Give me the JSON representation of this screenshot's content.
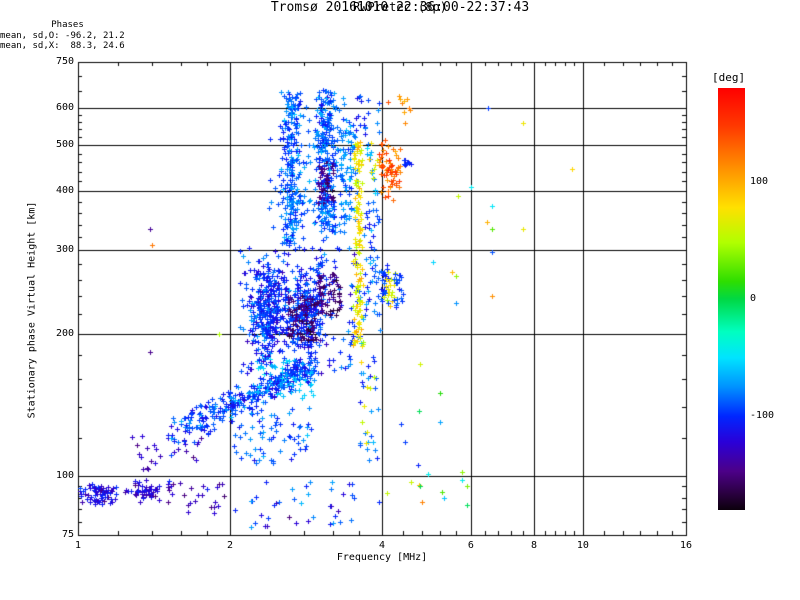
{
  "title": {
    "line1": "Tromsø 20161010 22:36:00-22:37:43",
    "line2": "RwPretec (8p)"
  },
  "annotation": {
    "header": "Phases",
    "line_o": "mean, sd,O: -96.2, 21.2",
    "line_x": "mean, sd,X:  88.3, 24.6"
  },
  "axes": {
    "x": {
      "label": "Frequency [MHz]",
      "scale": "log",
      "range": [
        1,
        16
      ],
      "major_ticks": [
        1,
        2,
        4,
        6,
        8,
        10,
        16
      ],
      "minor_ticks": [
        1.2,
        1.4,
        1.6,
        1.8,
        2.4,
        2.8,
        3.2,
        3.6,
        4.4,
        4.8,
        5.2,
        5.6,
        6.4,
        6.8,
        7.2,
        7.6,
        8.4,
        8.8,
        9.2,
        9.6,
        11,
        12,
        13,
        14,
        15
      ],
      "gridlines": [
        2,
        4,
        6,
        8,
        10
      ]
    },
    "y": {
      "label": "Stationary phase Virtual Height [km]",
      "scale": "log",
      "range": [
        75,
        750
      ],
      "major_ticks": [
        750,
        600,
        500,
        400,
        300,
        200,
        100,
        75
      ],
      "minor_ticks": [
        80,
        85,
        90,
        95,
        120,
        140,
        160,
        180,
        220,
        240,
        260,
        280,
        320,
        340,
        360,
        380,
        420,
        440,
        460,
        480,
        520,
        540,
        560,
        580,
        650,
        700
      ],
      "gridlines": [
        100,
        200,
        300,
        400,
        500,
        600
      ]
    }
  },
  "colorbar": {
    "label": "[deg]",
    "units": "deg",
    "range": [
      -180,
      180
    ],
    "tick_values": [
      100,
      0,
      -100
    ],
    "stops": [
      {
        "v": 180,
        "c": "#ff0000"
      },
      {
        "v": 148,
        "c": "#ff3800"
      },
      {
        "v": 110,
        "c": "#ff9400"
      },
      {
        "v": 78,
        "c": "#ffe000"
      },
      {
        "v": 48,
        "c": "#b0ff00"
      },
      {
        "v": 15,
        "c": "#2ede00"
      },
      {
        "v": 0,
        "c": "#00d844"
      },
      {
        "v": -28,
        "c": "#00ffc0"
      },
      {
        "v": -50,
        "c": "#00e4ff"
      },
      {
        "v": -75,
        "c": "#0092ff"
      },
      {
        "v": -100,
        "c": "#0026ff"
      },
      {
        "v": -122,
        "c": "#2a00d8"
      },
      {
        "v": -147,
        "c": "#4c0088"
      },
      {
        "v": -166,
        "c": "#2a0040"
      },
      {
        "v": -180,
        "c": "#0c000c"
      }
    ]
  },
  "chart_data": {
    "type": "scatter",
    "marker": "plus",
    "title": "Tromsø 20161010 22:36:00-22:37:43 / RwPretec (8p)",
    "xlabel": "Frequency [MHz]",
    "ylabel": "Stationary phase Virtual Height [km]",
    "xlim": [
      1,
      16
    ],
    "ylim": [
      75,
      750
    ],
    "xscale": "log",
    "yscale": "log",
    "color_variable": "phase [deg]",
    "stats": {
      "mean_sd_O": [
        -96.2,
        21.2
      ],
      "mean_sd_X": [
        88.3,
        24.6
      ]
    },
    "seed": 42,
    "clusters": [
      {
        "name": "es-blob-1",
        "f": [
          1.0,
          1.22
        ],
        "h": [
          86,
          98
        ],
        "n": 70,
        "p": [
          -150,
          -88
        ],
        "mode": "center"
      },
      {
        "name": "es-blob-2",
        "f": [
          1.22,
          1.52
        ],
        "h": [
          87,
          99
        ],
        "n": 55,
        "p": [
          -155,
          -95
        ],
        "mode": "center"
      },
      {
        "name": "es-tail",
        "f": [
          1.5,
          1.95
        ],
        "h": [
          83,
          97
        ],
        "n": 28,
        "p": [
          -160,
          -100
        ],
        "mode": "blob"
      },
      {
        "name": "es-upper-row",
        "f": [
          1.25,
          1.8
        ],
        "h": [
          103,
          122
        ],
        "n": 26,
        "p": [
          -158,
          -104
        ],
        "mode": "blob"
      },
      {
        "name": "d-region-scatter",
        "f": [
          2.0,
          3.55
        ],
        "h": [
          78,
          97
        ],
        "n": 38,
        "p": [
          -145,
          -55
        ],
        "mode": "blob"
      },
      {
        "name": "e-trace",
        "f": [
          1.5,
          2.95
        ],
        "h": [
          121,
          170
        ],
        "n": 330,
        "p": [
          -128,
          -62
        ],
        "mode": "band",
        "spread": 13
      },
      {
        "name": "e-trace-cyan-top",
        "f": [
          2.25,
          2.92
        ],
        "h": [
          146,
          178
        ],
        "n": 55,
        "p": [
          -78,
          -45
        ],
        "mode": "blob"
      },
      {
        "name": "e-underlayer",
        "f": [
          2.0,
          2.95
        ],
        "h": [
          106,
          142
        ],
        "n": 75,
        "p": [
          -125,
          -55
        ],
        "mode": "blob"
      },
      {
        "name": "f-blob-core-1",
        "f": [
          2.15,
          2.62
        ],
        "h": [
          168,
          302
        ],
        "n": 290,
        "p": [
          -135,
          -65
        ],
        "mode": "center"
      },
      {
        "name": "f-blob-core-2",
        "f": [
          2.55,
          3.12
        ],
        "h": [
          178,
          285
        ],
        "n": 240,
        "p": [
          -130,
          -68
        ],
        "mode": "center"
      },
      {
        "name": "f-blob-spread",
        "f": [
          2.08,
          3.66
        ],
        "h": [
          164,
          312
        ],
        "n": 190,
        "p": [
          -140,
          -58
        ],
        "mode": "blob"
      },
      {
        "name": "purple-streak-1",
        "f": [
          2.6,
          2.98
        ],
        "h": [
          193,
          242
        ],
        "n": 80,
        "p": [
          -175,
          -132
        ],
        "mode": "blob"
      },
      {
        "name": "purple-streak-2",
        "f": [
          2.98,
          3.32
        ],
        "h": [
          218,
          268
        ],
        "n": 60,
        "p": [
          -172,
          -130
        ],
        "mode": "blob"
      },
      {
        "name": "spreadF-column-A",
        "f": [
          2.5,
          2.78
        ],
        "h": [
          310,
          648
        ],
        "n": 215,
        "p": [
          -115,
          -55
        ],
        "mode": "centerx"
      },
      {
        "name": "spreadF-column-B",
        "f": [
          2.92,
          3.27
        ],
        "h": [
          328,
          655
        ],
        "n": 245,
        "p": [
          -120,
          -58
        ],
        "mode": "centerx"
      },
      {
        "name": "column-B-purple-core",
        "f": [
          2.98,
          3.2
        ],
        "h": [
          378,
          462
        ],
        "n": 50,
        "p": [
          -170,
          -126
        ],
        "mode": "blob"
      },
      {
        "name": "spreadF-column-C",
        "f": [
          3.3,
          3.58
        ],
        "h": [
          348,
          568
        ],
        "n": 75,
        "p": [
          -105,
          -50
        ],
        "mode": "blob"
      },
      {
        "name": "inter-column-fill",
        "f": [
          2.58,
          3.45
        ],
        "h": [
          305,
          630
        ],
        "n": 105,
        "p": [
          -115,
          -58
        ],
        "mode": "blob"
      },
      {
        "name": "column-left-sparse",
        "f": [
          2.35,
          2.55
        ],
        "h": [
          330,
          560
        ],
        "n": 13,
        "p": [
          -120,
          -70
        ],
        "mode": "blob"
      },
      {
        "name": "top-mid-sparse",
        "f": [
          3.55,
          3.95
        ],
        "h": [
          520,
          650
        ],
        "n": 20,
        "p": [
          -130,
          -60
        ],
        "mode": "blob"
      },
      {
        "name": "x-mode-strip",
        "f": [
          3.49,
          3.67
        ],
        "h": [
          188,
          508
        ],
        "n": 135,
        "p": [
          40,
          108
        ],
        "mode": "centerx"
      },
      {
        "name": "strip-foot-blue",
        "f": [
          3.6,
          3.96
        ],
        "h": [
          108,
          188
        ],
        "n": 24,
        "p": [
          -115,
          -55
        ],
        "mode": "blob"
      },
      {
        "name": "strip-foot-yellow",
        "f": [
          3.62,
          3.92
        ],
        "h": [
          112,
          182
        ],
        "n": 8,
        "p": [
          45,
          90
        ],
        "mode": "blob"
      },
      {
        "name": "mid-right-band",
        "f": [
          3.66,
          3.96
        ],
        "h": [
          200,
          380
        ],
        "n": 50,
        "p": [
          -120,
          -58
        ],
        "mode": "blob"
      },
      {
        "name": "pre-orange-blue",
        "f": [
          3.7,
          3.92
        ],
        "h": [
          380,
          520
        ],
        "n": 12,
        "p": [
          -95,
          -50
        ],
        "mode": "blob"
      },
      {
        "name": "pre-orange-yellow",
        "f": [
          3.7,
          3.92
        ],
        "h": [
          380,
          520
        ],
        "n": 8,
        "p": [
          40,
          100
        ],
        "mode": "blob"
      },
      {
        "name": "x-orange-cluster",
        "f": [
          3.88,
          4.45
        ],
        "h": [
          380,
          525
        ],
        "n": 66,
        "p": [
          95,
          168
        ],
        "mode": "center"
      },
      {
        "name": "orange-high-sparse",
        "f": [
          4.05,
          4.55
        ],
        "h": [
          528,
          640
        ],
        "n": 10,
        "p": [
          78,
          150
        ],
        "mode": "blob"
      },
      {
        "name": "blue-clump-4p5",
        "f": [
          4.38,
          4.58
        ],
        "h": [
          450,
          474
        ],
        "n": 9,
        "p": [
          -122,
          -95
        ],
        "mode": "center"
      },
      {
        "name": "second-echo-blue-1",
        "f": [
          3.95,
          4.12
        ],
        "h": [
          228,
          282
        ],
        "n": 28,
        "p": [
          -120,
          -80
        ],
        "mode": "center"
      },
      {
        "name": "second-echo-yellow",
        "f": [
          4.02,
          4.28
        ],
        "h": [
          228,
          272
        ],
        "n": 22,
        "p": [
          38,
          95
        ],
        "mode": "blob"
      },
      {
        "name": "second-echo-blue-2",
        "f": [
          4.22,
          4.42
        ],
        "h": [
          222,
          268
        ],
        "n": 20,
        "p": [
          -118,
          -78
        ],
        "mode": "blob"
      },
      {
        "name": "mid-sparse-low",
        "f": [
          4.2,
          6.0
        ],
        "h": [
          85,
          150
        ],
        "n": 12,
        "p": [
          -120,
          130
        ],
        "mode": "blob"
      }
    ],
    "singles": [
      [
        6.5,
        600,
        -95
      ],
      [
        7.6,
        556,
        72
      ],
      [
        9.5,
        445,
        82
      ],
      [
        6.0,
        408,
        -45
      ],
      [
        5.65,
        390,
        55
      ],
      [
        6.6,
        372,
        -48
      ],
      [
        6.45,
        345,
        98
      ],
      [
        6.6,
        332,
        25
      ],
      [
        7.6,
        333,
        70
      ],
      [
        6.6,
        298,
        -90
      ],
      [
        6.6,
        240,
        112
      ],
      [
        5.05,
        283,
        -55
      ],
      [
        5.5,
        270,
        95
      ],
      [
        5.6,
        265,
        40
      ],
      [
        5.6,
        232,
        -75
      ],
      [
        4.75,
        172,
        60
      ],
      [
        1.39,
        333,
        -142
      ],
      [
        1.4,
        308,
        122
      ],
      [
        1.39,
        183,
        -145
      ],
      [
        1.9,
        200,
        48
      ],
      [
        2.62,
        82,
        -150
      ],
      [
        4.45,
        118,
        -95
      ],
      [
        5.2,
        130,
        -70
      ],
      [
        5.9,
        95,
        35
      ],
      [
        5.3,
        90,
        -60
      ],
      [
        4.8,
        88,
        118
      ],
      [
        4.1,
        92,
        55
      ],
      [
        3.95,
        88,
        -100
      ]
    ]
  }
}
